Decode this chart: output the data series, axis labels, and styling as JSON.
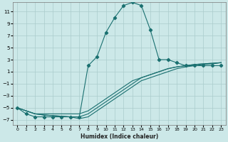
{
  "xlabel": "Humidex (Indice chaleur)",
  "bg_color": "#cce8e8",
  "grid_color": "#aacccc",
  "line_color": "#1a7070",
  "xlim": [
    -0.5,
    23.5
  ],
  "ylim": [
    -7.8,
    12.5
  ],
  "yticks": [
    -7,
    -5,
    -3,
    -1,
    1,
    3,
    5,
    7,
    9,
    11
  ],
  "xticks": [
    0,
    1,
    2,
    3,
    4,
    5,
    6,
    7,
    8,
    9,
    10,
    11,
    12,
    13,
    14,
    15,
    16,
    17,
    18,
    19,
    20,
    21,
    22,
    23
  ],
  "line1_x": [
    0,
    1,
    2,
    3,
    4,
    5,
    6,
    7,
    8,
    9,
    10,
    11,
    12,
    13,
    14,
    15,
    16,
    17,
    18,
    19,
    20,
    21,
    22,
    23
  ],
  "line1_y": [
    -5,
    -6,
    -6.5,
    -6.5,
    -6.5,
    -6.5,
    -6.5,
    -6.5,
    2,
    3.5,
    7.5,
    10,
    12,
    12.5,
    12,
    8,
    3,
    3,
    2.5,
    2,
    2,
    2,
    2,
    2
  ],
  "line2_x": [
    0,
    1,
    2,
    3,
    4,
    5,
    6,
    7,
    8,
    9,
    10,
    11,
    12,
    13,
    14,
    15,
    16,
    17,
    18,
    19,
    20,
    21,
    22,
    23
  ],
  "line2_y": [
    -5,
    -5.5,
    -6,
    -6,
    -6,
    -6,
    -6,
    -6,
    -5.5,
    -4.5,
    -3.5,
    -2.5,
    -1.5,
    -0.5,
    0,
    0.5,
    1,
    1.5,
    1.8,
    2,
    2.2,
    2.3,
    2.4,
    2.5
  ],
  "line3_x": [
    0,
    1,
    2,
    3,
    4,
    5,
    6,
    7,
    8,
    9,
    10,
    11,
    12,
    13,
    14,
    15,
    16,
    17,
    18,
    19,
    20,
    21,
    22,
    23
  ],
  "line3_y": [
    -5,
    -5.5,
    -6,
    -6.2,
    -6.3,
    -6.4,
    -6.5,
    -6.5,
    -6,
    -5,
    -4,
    -3,
    -2,
    -1,
    0,
    0.5,
    1,
    1.5,
    1.8,
    2,
    2.2,
    2.3,
    2.4,
    2.5
  ],
  "line4_x": [
    0,
    1,
    2,
    3,
    4,
    5,
    6,
    7,
    8,
    9,
    10,
    11,
    12,
    13,
    14,
    15,
    16,
    17,
    18,
    19,
    20,
    21,
    22,
    23
  ],
  "line4_y": [
    -5,
    -5.5,
    -6,
    -6.2,
    -6.3,
    -6.4,
    -6.5,
    -6.8,
    -6.5,
    -5.5,
    -4.5,
    -3.5,
    -2.5,
    -1.5,
    -0.5,
    0,
    0.5,
    1,
    1.5,
    1.8,
    2,
    2.2,
    2.3,
    2.5
  ]
}
